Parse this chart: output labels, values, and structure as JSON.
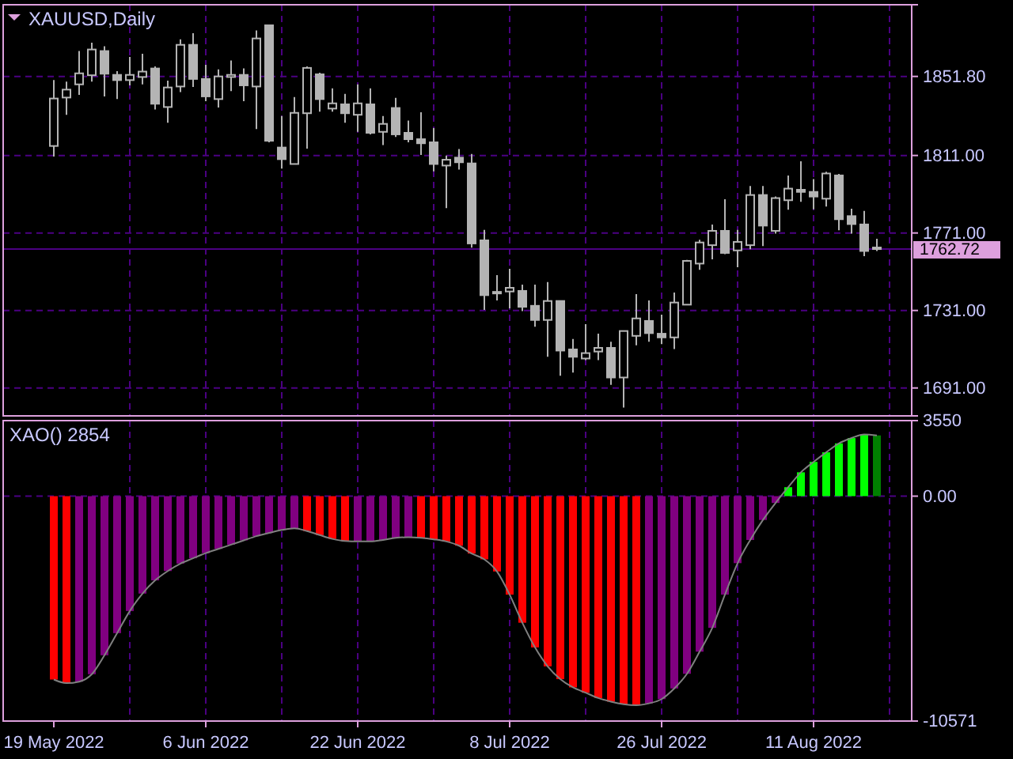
{
  "chart_data": [
    {
      "type": "candlestick",
      "title": "XAUUSD,Daily",
      "tick_labels": "y",
      "grid": true,
      "categories": [
        null,
        null,
        null,
        null,
        null,
        null,
        null,
        null,
        null,
        null,
        null,
        null,
        null,
        null,
        null,
        null,
        null,
        null,
        null,
        null,
        null,
        null,
        null,
        null,
        null,
        null,
        null,
        null,
        null,
        null,
        null,
        null,
        null,
        null,
        null,
        null,
        null,
        null,
        null,
        null,
        null,
        null,
        null,
        null,
        null,
        null,
        null,
        null,
        null,
        null,
        null,
        null,
        null,
        null,
        null,
        null,
        null,
        null,
        null,
        null,
        null,
        null,
        null,
        null,
        null,
        null
      ],
      "ohlc": [
        [
          1815.9,
          1849.9,
          1810.5,
          1840.4
        ],
        [
          1840.9,
          1849.1,
          1832.0,
          1845.0
        ],
        [
          1847.7,
          1864.9,
          1842.3,
          1853.4
        ],
        [
          1852.4,
          1869.2,
          1849.1,
          1865.7
        ],
        [
          1864.9,
          1867.4,
          1841.5,
          1853.2
        ],
        [
          1852.6,
          1854.5,
          1840.1,
          1849.9
        ],
        [
          1849.9,
          1861.9,
          1847.2,
          1852.6
        ],
        [
          1851.5,
          1863.5,
          1847.7,
          1854.3
        ],
        [
          1855.9,
          1857.0,
          1834.7,
          1837.7
        ],
        [
          1836.0,
          1849.6,
          1827.9,
          1846.1
        ],
        [
          1846.6,
          1870.9,
          1843.7,
          1868.1
        ],
        [
          1868.1,
          1874.1,
          1846.4,
          1850.5
        ],
        [
          1850.5,
          1857.8,
          1839.0,
          1841.5
        ],
        [
          1840.1,
          1855.4,
          1835.8,
          1851.8
        ],
        [
          1851.5,
          1860.0,
          1844.2,
          1852.6
        ],
        [
          1852.6,
          1855.9,
          1839.0,
          1847.2
        ],
        [
          1846.6,
          1875.5,
          1824.6,
          1871.4
        ],
        [
          1878.2,
          1878.2,
          1817.8,
          1818.6
        ],
        [
          1815.1,
          1831.4,
          1804.2,
          1809.1
        ],
        [
          1806.6,
          1841.2,
          1806.6,
          1833.0
        ],
        [
          1832.8,
          1857.0,
          1814.5,
          1856.2
        ],
        [
          1852.9,
          1853.7,
          1833.6,
          1840.1
        ],
        [
          1835.2,
          1845.6,
          1833.6,
          1837.9
        ],
        [
          1837.4,
          1842.8,
          1827.9,
          1832.8
        ],
        [
          1832.0,
          1847.7,
          1823.2,
          1837.9
        ],
        [
          1837.4,
          1845.6,
          1821.9,
          1822.7
        ],
        [
          1823.2,
          1831.4,
          1816.4,
          1827.3
        ],
        [
          1835.5,
          1840.7,
          1820.5,
          1821.9
        ],
        [
          1822.7,
          1829.0,
          1817.8,
          1819.4
        ],
        [
          1819.4,
          1833.3,
          1811.3,
          1817.3
        ],
        [
          1817.8,
          1825.1,
          1802.8,
          1806.6
        ],
        [
          1805.8,
          1811.0,
          1783.8,
          1808.8
        ],
        [
          1809.9,
          1814.3,
          1803.7,
          1807.5
        ],
        [
          1806.9,
          1811.8,
          1763.4,
          1765.6
        ],
        [
          1767.2,
          1772.6,
          1731.3,
          1738.9
        ],
        [
          1740.6,
          1749.2,
          1736.2,
          1740.0
        ],
        [
          1740.8,
          1752.5,
          1732.1,
          1742.7
        ],
        [
          1741.1,
          1744.3,
          1730.7,
          1732.9
        ],
        [
          1733.4,
          1744.3,
          1722.6,
          1726.1
        ],
        [
          1726.1,
          1745.7,
          1707.1,
          1735.9
        ],
        [
          1735.9,
          1735.9,
          1697.3,
          1710.3
        ],
        [
          1710.9,
          1716.3,
          1698.9,
          1707.1
        ],
        [
          1706.2,
          1723.9,
          1705.4,
          1709.0
        ],
        [
          1709.8,
          1719.0,
          1705.4,
          1711.7
        ],
        [
          1711.7,
          1714.9,
          1692.6,
          1696.4
        ],
        [
          1696.4,
          1720.4,
          1680.9,
          1720.4
        ],
        [
          1717.9,
          1739.4,
          1713.0,
          1726.9
        ],
        [
          1725.6,
          1736.2,
          1714.9,
          1719.3
        ],
        [
          1719.0,
          1728.8,
          1713.6,
          1717.1
        ],
        [
          1717.1,
          1740.3,
          1711.1,
          1735.1
        ],
        [
          1734.0,
          1757.1,
          1734.0,
          1756.6
        ],
        [
          1755.2,
          1767.5,
          1752.0,
          1766.1
        ],
        [
          1764.7,
          1775.4,
          1757.4,
          1772.1
        ],
        [
          1772.1,
          1788.4,
          1760.1,
          1760.7
        ],
        [
          1762.0,
          1772.6,
          1753.3,
          1766.4
        ],
        [
          1764.7,
          1795.2,
          1762.6,
          1790.6
        ],
        [
          1790.6,
          1795.2,
          1764.2,
          1774.8
        ],
        [
          1772.1,
          1789.8,
          1770.7,
          1789.0
        ],
        [
          1787.9,
          1800.7,
          1783.0,
          1793.9
        ],
        [
          1793.3,
          1808.0,
          1787.1,
          1792.2
        ],
        [
          1792.2,
          1798.8,
          1783.2,
          1789.8
        ],
        [
          1788.7,
          1802.6,
          1784.6,
          1801.7
        ],
        [
          1800.7,
          1801.5,
          1772.4,
          1778.1
        ],
        [
          1779.7,
          1783.5,
          1770.7,
          1775.6
        ],
        [
          1775.4,
          1782.4,
          1759.0,
          1761.7
        ],
        [
          1763.5,
          1768.0,
          1761.7,
          1762.72
        ]
      ],
      "ylim": [
        1676.6,
        1888.8
      ],
      "yticks": [
        {
          "value": 1691,
          "label": "1691.00"
        },
        {
          "value": 1731,
          "label": "1731.00"
        },
        {
          "value": 1771,
          "label": "1771.00"
        },
        {
          "value": 1811,
          "label": "1811.00"
        },
        {
          "value": 1851.8,
          "label": "1851.80"
        }
      ],
      "ref_lines": [
        {
          "axis": "y",
          "value": 1762.72,
          "label": "1762.72",
          "color": "#4b0082"
        }
      ]
    },
    {
      "type": "bar",
      "title": "XAO() 2854",
      "grid": true,
      "categories": [
        "19 May 2022",
        null,
        null,
        null,
        null,
        null,
        null,
        null,
        null,
        null,
        null,
        null,
        "6 Jun 2022",
        null,
        null,
        null,
        null,
        null,
        null,
        null,
        null,
        null,
        null,
        null,
        "22 Jun 2022",
        null,
        null,
        null,
        null,
        null,
        null,
        null,
        null,
        null,
        null,
        null,
        "8 Jul 2022",
        null,
        null,
        null,
        null,
        null,
        null,
        null,
        null,
        null,
        null,
        null,
        "26 Jul 2022",
        null,
        null,
        null,
        null,
        null,
        null,
        null,
        null,
        null,
        null,
        null,
        "11 Aug 2022",
        null,
        null,
        null,
        null,
        null
      ],
      "ylim": [
        -10571,
        3550
      ],
      "yticks": [
        -10571,
        {
          "value": 0,
          "label": "0.00"
        },
        3550
      ],
      "series": [
        {
          "type": "bar",
          "colors": [
            "#ff0000",
            "#ff0000",
            "#800080",
            "#800080",
            "#800080",
            "#800080",
            "#800080",
            "#800080",
            "#800080",
            "#800080",
            "#800080",
            "#800080",
            "#800080",
            "#800080",
            "#800080",
            "#800080",
            "#800080",
            "#800080",
            "#800080",
            "#800080",
            "#ff0000",
            "#ff0000",
            "#ff0000",
            "#ff0000",
            "#800080",
            "#800080",
            "#800080",
            "#800080",
            "#800080",
            "#ff0000",
            "#ff0000",
            "#ff0000",
            "#ff0000",
            "#ff0000",
            "#ff0000",
            "#ff0000",
            "#ff0000",
            "#ff0000",
            "#ff0000",
            "#ff0000",
            "#ff0000",
            "#ff0000",
            "#ff0000",
            "#ff0000",
            "#ff0000",
            "#ff0000",
            "#ff0000",
            "#800080",
            "#800080",
            "#800080",
            "#800080",
            "#800080",
            "#800080",
            "#800080",
            "#800080",
            "#800080",
            "#800080",
            "#800080",
            "#00ff00",
            "#00ff00",
            "#00ff00",
            "#00ff00",
            "#00ff00",
            "#00ff00",
            "#00ff00",
            "#008000"
          ],
          "values": [
            -8620,
            -8790,
            -8720,
            -8370,
            -7480,
            -6440,
            -5400,
            -4580,
            -3960,
            -3520,
            -3170,
            -2920,
            -2680,
            -2480,
            -2280,
            -2080,
            -1880,
            -1730,
            -1590,
            -1510,
            -1640,
            -1830,
            -2010,
            -2110,
            -2130,
            -2130,
            -2060,
            -1960,
            -1930,
            -1960,
            -2030,
            -2130,
            -2330,
            -2700,
            -2970,
            -3540,
            -4630,
            -5950,
            -7110,
            -8000,
            -8600,
            -8990,
            -9240,
            -9490,
            -9660,
            -9780,
            -9830,
            -9740,
            -9540,
            -9040,
            -8350,
            -7310,
            -6190,
            -4630,
            -3150,
            -2060,
            -1120,
            -320,
            420,
            1120,
            1610,
            2060,
            2480,
            2730,
            2900,
            2854
          ]
        },
        {
          "type": "line",
          "color": "#808080",
          "values": [
            -8620,
            -8790,
            -8720,
            -8370,
            -7480,
            -6440,
            -5400,
            -4580,
            -3960,
            -3520,
            -3170,
            -2920,
            -2680,
            -2480,
            -2280,
            -2080,
            -1880,
            -1730,
            -1590,
            -1510,
            -1640,
            -1830,
            -2010,
            -2110,
            -2130,
            -2130,
            -2060,
            -1960,
            -1930,
            -1960,
            -2030,
            -2130,
            -2330,
            -2700,
            -2970,
            -3540,
            -4630,
            -5950,
            -7110,
            -8000,
            -8600,
            -8990,
            -9240,
            -9490,
            -9660,
            -9780,
            -9830,
            -9740,
            -9540,
            -9040,
            -8350,
            -7310,
            -6190,
            -4630,
            -3150,
            -2060,
            -1120,
            -320,
            420,
            1120,
            1610,
            2060,
            2480,
            2730,
            2900,
            2854
          ]
        }
      ]
    }
  ]
}
